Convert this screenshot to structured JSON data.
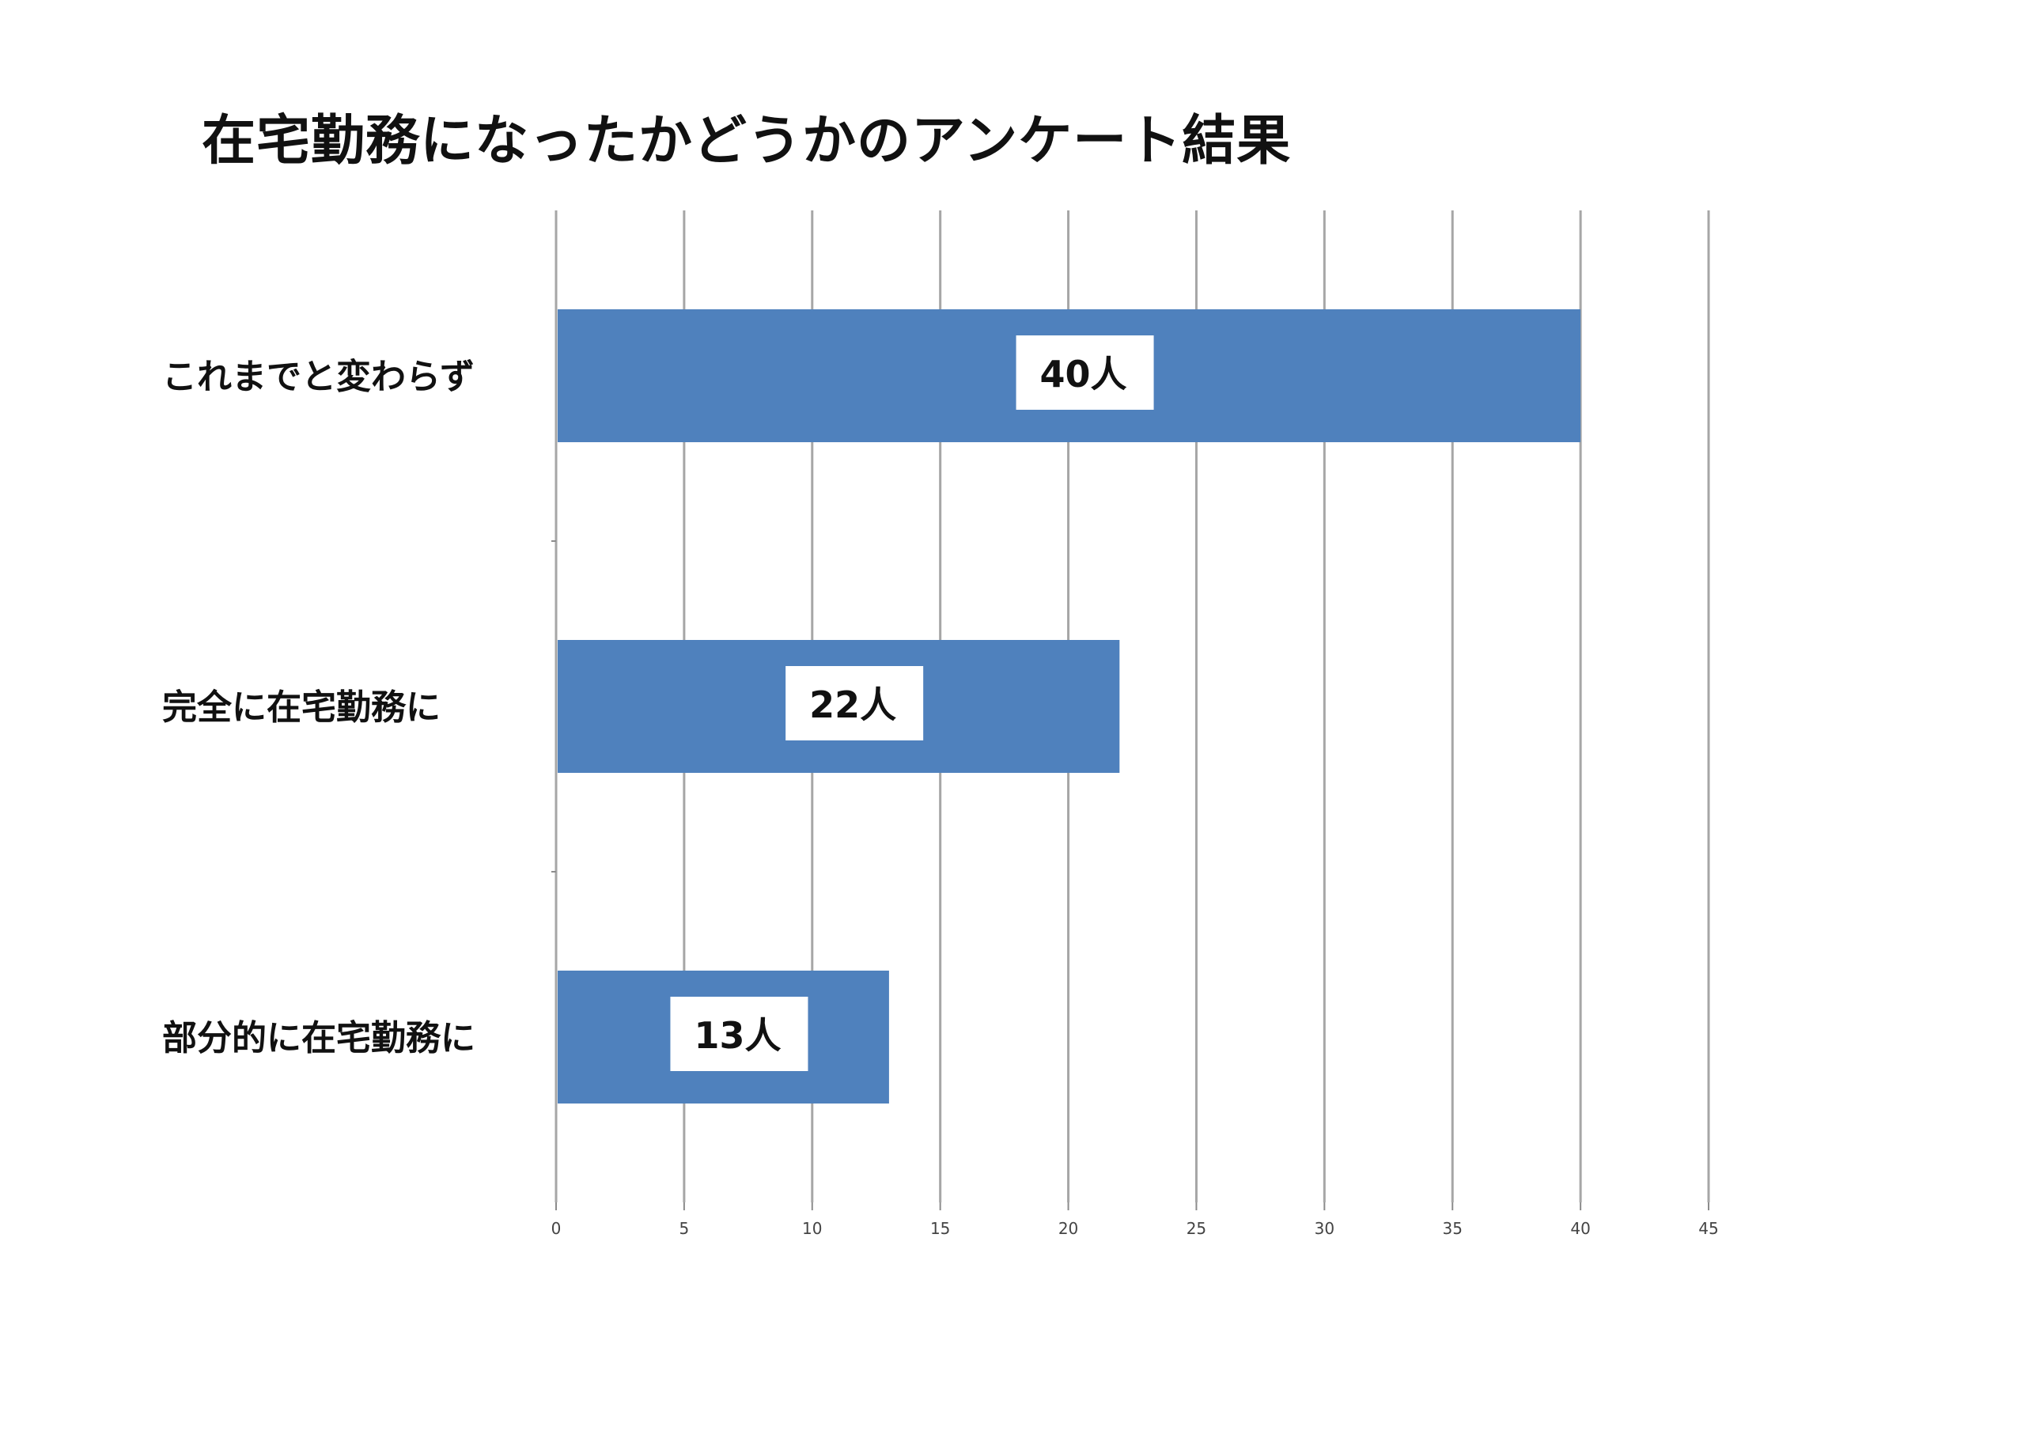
{
  "chart_data": {
    "type": "bar",
    "orientation": "horizontal",
    "title": "在宅勤務になったかどうかのアンケート結果",
    "categories": [
      "これまでと変わらず",
      "完全に在宅勤務に",
      "部分的に在宅勤務に"
    ],
    "values": [
      40,
      22,
      13
    ],
    "data_labels": [
      "40人",
      "22人",
      "13人"
    ],
    "xlim": [
      0,
      45
    ],
    "x_ticks": [
      0,
      5,
      10,
      15,
      20,
      25,
      30,
      35,
      40,
      45
    ],
    "grid": true,
    "legend": "none",
    "bar_color": "#4f81bd",
    "grid_color": "#a6a6a6"
  }
}
